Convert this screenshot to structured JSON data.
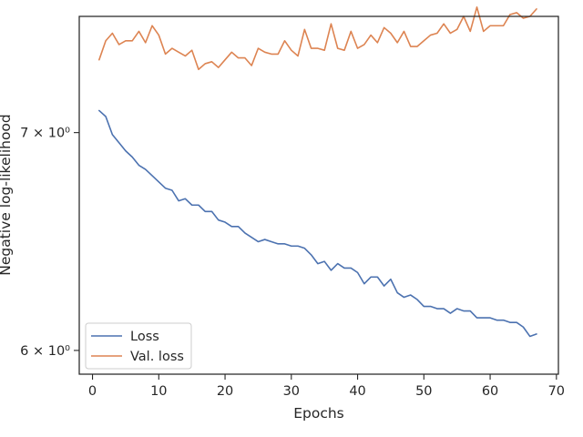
{
  "chart_data": {
    "type": "line",
    "title": "",
    "xlabel": "Epochs",
    "ylabel": "Negative log-likelihood",
    "xlim": [
      -2,
      70.3
    ],
    "ylim": [
      5.9,
      7.6
    ],
    "yscale": "log",
    "grid": false,
    "legend_position": "lower-left",
    "x_ticks": [
      0,
      10,
      20,
      30,
      40,
      50,
      60,
      70
    ],
    "x_tick_labels": [
      "0",
      "10",
      "20",
      "30",
      "40",
      "50",
      "60",
      "70"
    ],
    "y_ticks": [
      6,
      7
    ],
    "y_tick_labels": [
      "6 × 10⁰",
      "7 × 10⁰"
    ],
    "series": [
      {
        "name": "Loss",
        "color": "#4c72b0",
        "x": [
          1,
          2,
          3,
          4,
          5,
          6,
          7,
          8,
          9,
          10,
          11,
          12,
          13,
          14,
          15,
          16,
          17,
          18,
          19,
          20,
          21,
          22,
          23,
          24,
          25,
          26,
          27,
          28,
          29,
          30,
          31,
          32,
          33,
          34,
          35,
          36,
          37,
          38,
          39,
          40,
          41,
          42,
          43,
          44,
          45,
          46,
          47,
          48,
          49,
          50,
          51,
          52,
          53,
          54,
          55,
          56,
          57,
          58,
          59,
          60,
          61,
          62,
          63,
          64,
          65,
          66,
          67
        ],
        "values": [
          7.11,
          7.08,
          6.99,
          6.95,
          6.91,
          6.88,
          6.84,
          6.82,
          6.79,
          6.76,
          6.73,
          6.72,
          6.67,
          6.68,
          6.65,
          6.65,
          6.62,
          6.62,
          6.58,
          6.57,
          6.55,
          6.55,
          6.52,
          6.5,
          6.48,
          6.49,
          6.48,
          6.47,
          6.47,
          6.46,
          6.46,
          6.45,
          6.42,
          6.38,
          6.39,
          6.35,
          6.38,
          6.36,
          6.36,
          6.34,
          6.29,
          6.32,
          6.32,
          6.28,
          6.31,
          6.25,
          6.23,
          6.24,
          6.22,
          6.19,
          6.19,
          6.18,
          6.18,
          6.16,
          6.18,
          6.17,
          6.17,
          6.14,
          6.14,
          6.14,
          6.13,
          6.13,
          6.12,
          6.12,
          6.1,
          6.06,
          6.07
        ]
      },
      {
        "name": "Val. loss",
        "color": "#dd8452",
        "x": [
          1,
          2,
          3,
          4,
          5,
          6,
          7,
          8,
          9,
          10,
          11,
          12,
          13,
          14,
          15,
          16,
          17,
          18,
          19,
          20,
          21,
          22,
          23,
          24,
          25,
          26,
          27,
          28,
          29,
          30,
          31,
          32,
          33,
          34,
          35,
          36,
          37,
          38,
          39,
          40,
          41,
          42,
          43,
          44,
          45,
          46,
          47,
          48,
          49,
          50,
          51,
          52,
          53,
          54,
          55,
          56,
          57,
          58,
          59,
          60,
          61,
          62,
          63,
          64,
          65,
          66,
          67
        ],
        "values": [
          7.37,
          7.47,
          7.51,
          7.45,
          7.47,
          7.47,
          7.52,
          7.46,
          7.55,
          7.5,
          7.4,
          7.43,
          7.41,
          7.39,
          7.42,
          7.32,
          7.35,
          7.36,
          7.33,
          7.37,
          7.41,
          7.38,
          7.38,
          7.34,
          7.43,
          7.41,
          7.4,
          7.4,
          7.47,
          7.42,
          7.39,
          7.53,
          7.43,
          7.43,
          7.42,
          7.56,
          7.43,
          7.42,
          7.52,
          7.43,
          7.45,
          7.5,
          7.46,
          7.54,
          7.51,
          7.46,
          7.52,
          7.44,
          7.44,
          7.47,
          7.5,
          7.51,
          7.56,
          7.51,
          7.53,
          7.6,
          7.52,
          7.65,
          7.52,
          7.55,
          7.55,
          7.55,
          7.61,
          7.62,
          7.59,
          7.6,
          7.64
        ]
      }
    ]
  }
}
